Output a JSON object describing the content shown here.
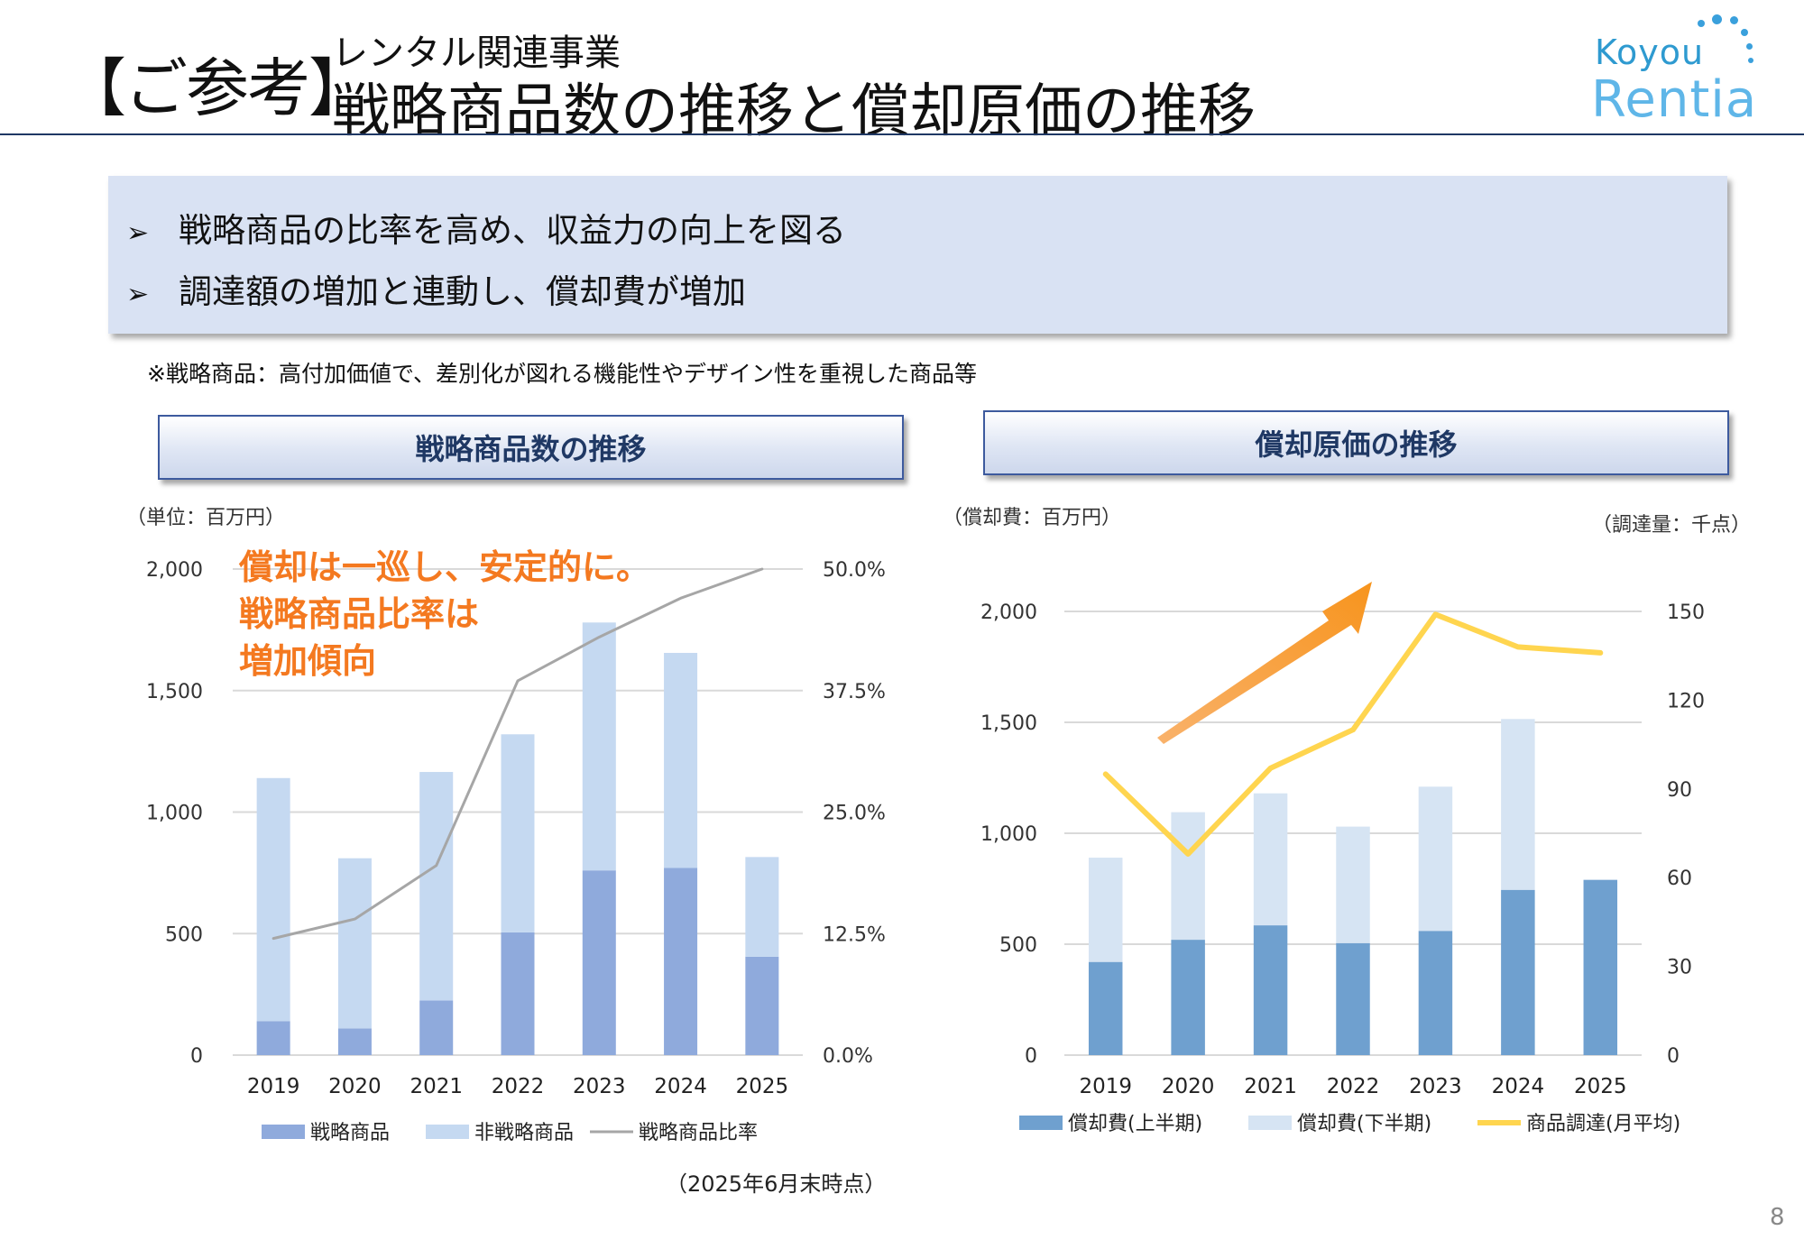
{
  "header": {
    "bracket_title": "【ご参考】",
    "subtitle": "レンタル関連事業",
    "title": "戦略商品数の推移と償却原価の推移",
    "logo_line1": "Koyou",
    "logo_line2": "Rentia"
  },
  "summary": {
    "bullets": [
      "戦略商品の比率を高め、収益力の向上を図る",
      "調達額の増加と連動し、償却費が増加"
    ],
    "note": "※戦略商品：高付加価値で、差別化が図れる機能性やデザイン性を重視した商品等"
  },
  "left_panel": {
    "header": "戦略商品数の推移",
    "unit": "（単位：百万円）",
    "highlight_lines": [
      "償却は一巡し、安定的に。",
      "戦略商品比率は",
      "増加傾向"
    ],
    "as_of": "（2025年6月末時点）"
  },
  "right_panel": {
    "header": "償却原価の推移",
    "unit_left": "（償却費：百万円）",
    "unit_right": "（調達量：千点）"
  },
  "page_number": "8",
  "colors": {
    "strategic": "#8faadc",
    "non_strategic": "#c5d9f1",
    "ratio_line": "#a6a6a6",
    "amort_h1": "#6fa0cf",
    "amort_h2": "#d6e4f3",
    "procurement": "#ffd54f",
    "arrow": "#f7941d",
    "highlight_text": "#f47920",
    "header_text": "#1f3864"
  },
  "chart_data": [
    {
      "type": "bar",
      "stacked": true,
      "categories": [
        "2019",
        "2020",
        "2021",
        "2022",
        "2023",
        "2024",
        "2025"
      ],
      "series": [
        {
          "name": "戦略商品",
          "kind": "bar",
          "axis": "left",
          "color": "#8faadc",
          "values": [
            140,
            110,
            225,
            505,
            760,
            770,
            405
          ]
        },
        {
          "name": "非戦略商品",
          "kind": "bar",
          "axis": "left",
          "color": "#c5d9f1",
          "values": [
            1000,
            700,
            940,
            815,
            1020,
            885,
            410
          ]
        },
        {
          "name": "戦略商品比率",
          "kind": "line",
          "axis": "right",
          "color": "#a6a6a6",
          "values": [
            12.0,
            14.0,
            19.5,
            38.5,
            43.0,
            47.0,
            50.0
          ]
        }
      ],
      "y_left": {
        "min": 0,
        "max": 2000,
        "ticks": [
          "0",
          "500",
          "1,000",
          "1,500",
          "2,000"
        ],
        "values": [
          0,
          500,
          1000,
          1500,
          2000
        ]
      },
      "y_right": {
        "min": 0,
        "max": 50,
        "ticks": [
          "0.0%",
          "12.5%",
          "25.0%",
          "37.5%",
          "50.0%"
        ],
        "values": [
          0,
          12.5,
          25,
          37.5,
          50
        ]
      },
      "grid": true,
      "legend_position": "bottom"
    },
    {
      "type": "bar",
      "stacked": true,
      "categories": [
        "2019",
        "2020",
        "2021",
        "2022",
        "2023",
        "2024",
        "2025"
      ],
      "series": [
        {
          "name": "償却費(上半期)",
          "kind": "bar",
          "axis": "left",
          "color": "#6fa0cf",
          "values": [
            420,
            520,
            585,
            505,
            560,
            745,
            790
          ]
        },
        {
          "name": "償却費(下半期)",
          "kind": "bar",
          "axis": "left",
          "color": "#d6e4f3",
          "values": [
            470,
            575,
            595,
            525,
            650,
            770,
            0
          ]
        },
        {
          "name": "商品調達(月平均)",
          "kind": "line",
          "axis": "right",
          "color": "#ffd54f",
          "values": [
            95,
            68,
            97,
            110,
            149,
            138,
            136
          ]
        }
      ],
      "y_left": {
        "min": 0,
        "max": 2000,
        "ticks": [
          "0",
          "500",
          "1,000",
          "1,500",
          "2,000"
        ],
        "values": [
          0,
          500,
          1000,
          1500,
          2000
        ]
      },
      "y_right": {
        "min": 0,
        "max": 150,
        "ticks": [
          "0",
          "30",
          "60",
          "90",
          "120",
          "150"
        ],
        "values": [
          0,
          30,
          60,
          90,
          120,
          150
        ]
      },
      "grid": true,
      "legend_position": "bottom",
      "annotation": "upward-arrow"
    }
  ]
}
